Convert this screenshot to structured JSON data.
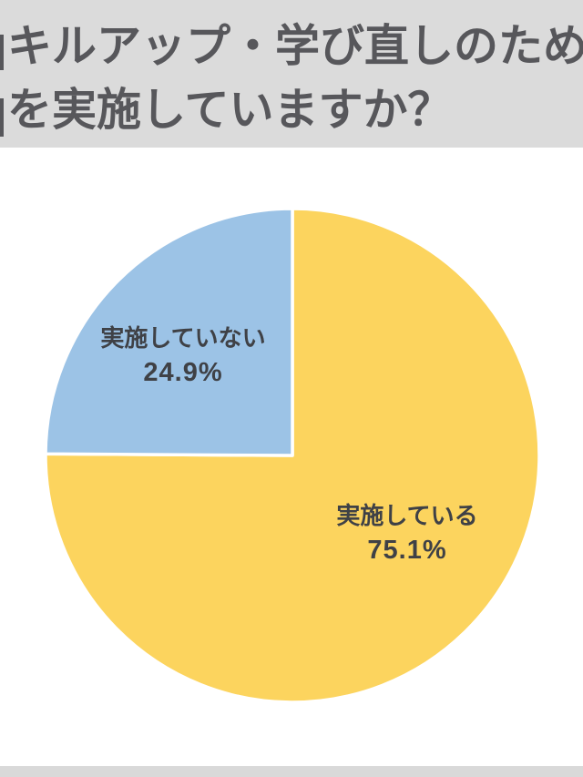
{
  "header": {
    "title_line1": "キルアップ・学び直しのため",
    "title_line2": "を実施していますか？",
    "bg_color": "#dbdbdb",
    "text_color": "#57575b"
  },
  "chart_data": {
    "type": "pie",
    "title": "キルアップ・学び直しのため を実施していますか？",
    "start_angle_deg": 0,
    "direction": "clockwise",
    "divider_color": "#ffffff",
    "legend_position": "none",
    "labels_position": "inside",
    "slices": [
      {
        "label": "実施している",
        "value": 75.1,
        "display": "75.1%",
        "color": "#fcd45e"
      },
      {
        "label": "実施していない",
        "value": 24.9,
        "display": "24.9%",
        "color": "#9cc3e6"
      }
    ]
  },
  "footer": {
    "bar_color": "#d9d9d9"
  }
}
